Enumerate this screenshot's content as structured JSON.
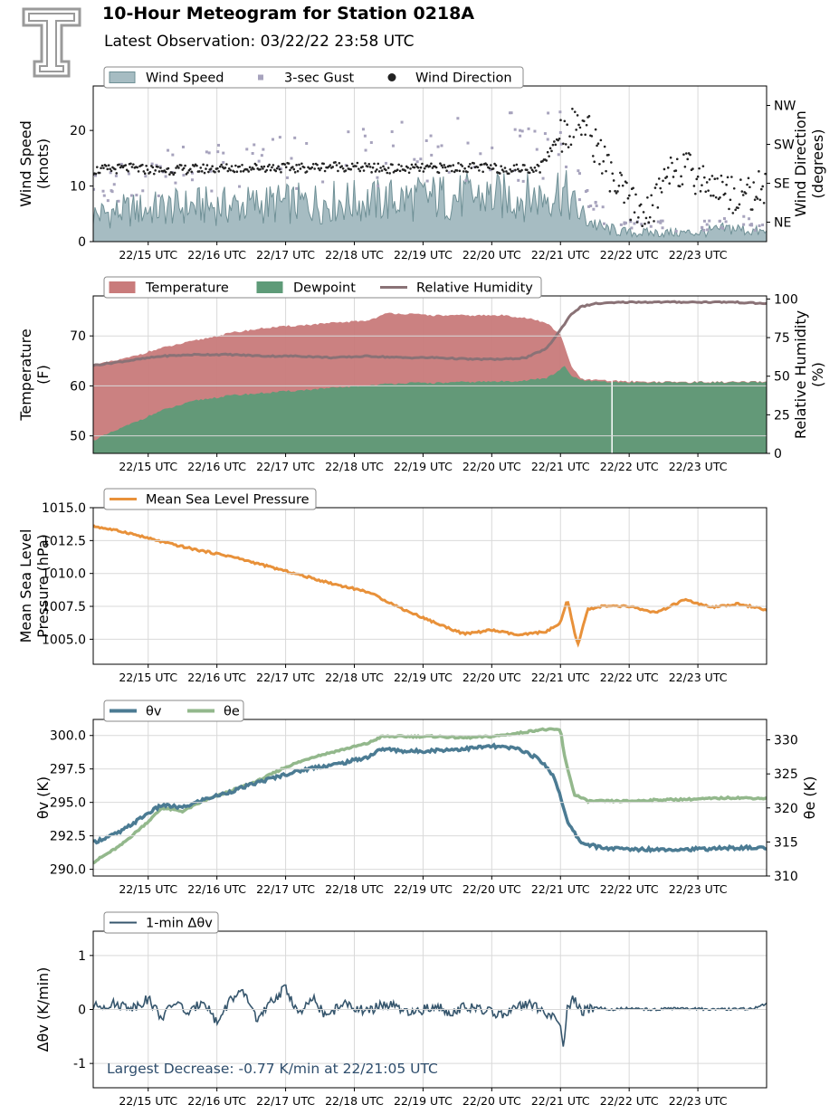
{
  "header": {
    "title": "10-Hour Meteogram for Station 0218A",
    "subtitle": "Latest Observation: 03/22/22 23:58 UTC"
  },
  "colors": {
    "wind_speed": "#a6bcc2",
    "wind_speed_line": "#6f9096",
    "gust": "#a7a3bd",
    "wind_direction": "#222222",
    "temperature": "#c97b7b",
    "dewpoint": "#5e9b78",
    "relative_humidity": "#8a7276",
    "pressure": "#e8913a",
    "theta_v": "#4b7b93",
    "theta_e": "#93b88c",
    "dtheta": "#36566d",
    "annotation": "#2e4d6c",
    "grid": "#d9d9d9"
  },
  "time_ticks": [
    "22/15 UTC",
    "22/16 UTC",
    "22/17 UTC",
    "22/18 UTC",
    "22/19 UTC",
    "22/20 UTC",
    "22/21 UTC",
    "22/22 UTC",
    "22/23 UTC"
  ],
  "chart_data": [
    {
      "type": "area",
      "id": "wind",
      "legend": [
        "Wind Speed",
        "3-sec Gust",
        "Wind Direction"
      ],
      "ylabel": "Wind Speed\n(knots)",
      "ylim": [
        0,
        28
      ],
      "yticks": [
        0,
        10,
        20
      ],
      "y2label": "Wind Direction\n(degrees)",
      "y2lim": [
        0,
        360
      ],
      "y2ticks": [
        {
          "value": 45,
          "label": "NE"
        },
        {
          "value": 135,
          "label": "SE"
        },
        {
          "value": 225,
          "label": "SW"
        },
        {
          "value": 315,
          "label": "NW"
        }
      ],
      "xlim": [
        14.2,
        24.0
      ],
      "series": [
        {
          "name": "Wind Speed",
          "x": [
            14.2,
            14.7,
            15.2,
            15.7,
            16.2,
            16.7,
            17.2,
            17.7,
            18.2,
            18.7,
            19.2,
            19.7,
            20.2,
            20.7,
            21.0,
            21.3,
            21.6,
            22.0,
            22.5,
            23.0,
            23.5,
            24.0
          ],
          "values": [
            6,
            7,
            7.5,
            8,
            8,
            8.5,
            8.5,
            9,
            9,
            9.5,
            10,
            10,
            10,
            10,
            12,
            6,
            3,
            2,
            2,
            2,
            3,
            2
          ]
        },
        {
          "name": "3-sec Gust",
          "x": [
            14.2,
            14.7,
            15.2,
            15.7,
            16.2,
            16.7,
            17.2,
            17.7,
            18.2,
            18.7,
            19.2,
            19.7,
            20.2,
            20.7,
            21.0,
            21.3,
            21.6,
            22.0,
            22.5,
            23.0,
            23.5,
            24.0
          ],
          "values": [
            10,
            12,
            13,
            14,
            14,
            15,
            15,
            16,
            16,
            17,
            18,
            18,
            18,
            17,
            19,
            10,
            5,
            3,
            3,
            3,
            4,
            3
          ]
        },
        {
          "name": "Wind Direction",
          "x": [
            14.2,
            14.7,
            15.2,
            15.7,
            16.2,
            16.7,
            17.2,
            17.7,
            18.2,
            18.7,
            19.2,
            19.7,
            20.2,
            20.7,
            21.0,
            21.3,
            21.6,
            21.8,
            22.0,
            22.3,
            22.6,
            23.0,
            23.5,
            24.0
          ],
          "values": [
            165,
            170,
            165,
            168,
            170,
            172,
            170,
            175,
            170,
            168,
            170,
            172,
            168,
            170,
            250,
            280,
            200,
            130,
            90,
            60,
            180,
            150,
            110,
            120
          ]
        }
      ]
    },
    {
      "type": "area",
      "id": "thermo",
      "legend": [
        "Temperature",
        "Dewpoint",
        "Relative Humidity"
      ],
      "ylabel": "Temperature\n(F)",
      "ylim": [
        46.5,
        78
      ],
      "yticks": [
        50,
        60,
        70
      ],
      "y2label": "Relative Humidity\n(%)",
      "y2lim": [
        0,
        102
      ],
      "y2ticks": [
        0,
        25,
        50,
        75,
        100
      ],
      "xlim": [
        14.2,
        24.0
      ],
      "series": [
        {
          "name": "Temperature",
          "x": [
            14.2,
            14.7,
            15.2,
            15.7,
            16.2,
            16.7,
            17.2,
            17.7,
            18.2,
            18.5,
            19.2,
            19.7,
            20.2,
            20.5,
            20.8,
            21.0,
            21.15,
            21.3,
            21.6,
            22.0,
            22.5,
            23.0,
            23.5,
            24.0
          ],
          "values": [
            64,
            65.5,
            67.5,
            69,
            70.5,
            71.5,
            72,
            72.5,
            73,
            74.5,
            74,
            74,
            74,
            73.5,
            72.5,
            70,
            64,
            61.2,
            61,
            60.8,
            60.7,
            60.7,
            60.7,
            60.7
          ]
        },
        {
          "name": "Dewpoint",
          "x": [
            14.2,
            14.7,
            15.2,
            15.7,
            16.2,
            16.7,
            17.2,
            17.7,
            18.2,
            18.7,
            19.2,
            19.7,
            20.2,
            20.5,
            20.8,
            21.0,
            21.05,
            21.15,
            21.3,
            21.6,
            22.0,
            22.5,
            23.0,
            23.5,
            24.0
          ],
          "values": [
            49,
            52,
            55,
            57,
            58,
            58.5,
            59,
            59.5,
            60,
            60.5,
            60.5,
            60.7,
            60.8,
            61,
            61.5,
            63,
            64,
            62,
            61,
            60.7,
            60.6,
            60.6,
            60.6,
            60.6,
            60.6
          ]
        },
        {
          "name": "Relative Humidity",
          "x": [
            14.2,
            14.7,
            15.2,
            15.7,
            16.2,
            16.7,
            17.2,
            17.7,
            18.2,
            18.7,
            19.2,
            19.7,
            20.2,
            20.5,
            20.8,
            21.0,
            21.15,
            21.3,
            21.5,
            22.0,
            22.5,
            23.0,
            23.5,
            24.0
          ],
          "values": [
            57,
            60,
            63,
            64,
            64,
            63,
            63,
            62,
            63,
            62,
            62,
            61,
            61,
            62,
            68,
            80,
            90,
            95,
            97,
            98,
            98,
            98,
            98,
            97
          ]
        }
      ]
    },
    {
      "type": "line",
      "id": "pressure",
      "legend": [
        "Mean Sea Level Pressure"
      ],
      "ylabel": "Mean Sea Level\nPressure (hPa)",
      "ylim": [
        1003.1,
        1015.0
      ],
      "yticks": [
        1005.0,
        1007.5,
        1010.0,
        1012.5,
        1015.0
      ],
      "xlim": [
        14.2,
        24.0
      ],
      "series": [
        {
          "name": "Mean Sea Level Pressure",
          "x": [
            14.2,
            14.7,
            15.2,
            15.7,
            16.2,
            16.7,
            17.2,
            17.7,
            18.2,
            18.7,
            19.2,
            19.6,
            20.0,
            20.4,
            20.8,
            21.0,
            21.1,
            21.25,
            21.4,
            21.6,
            22.0,
            22.4,
            22.8,
            23.2,
            23.6,
            24.0
          ],
          "values": [
            1013.6,
            1013.1,
            1012.4,
            1011.8,
            1011.3,
            1010.6,
            1009.9,
            1009.2,
            1008.6,
            1007.3,
            1006.2,
            1005.4,
            1005.7,
            1005.3,
            1005.6,
            1006.2,
            1008.0,
            1004.5,
            1007.3,
            1007.5,
            1007.5,
            1007.0,
            1008.0,
            1007.4,
            1007.7,
            1007.2
          ]
        }
      ]
    },
    {
      "type": "line",
      "id": "theta",
      "legend": [
        "θv",
        "θe"
      ],
      "ylabel": "θv (K)",
      "ylim": [
        289.5,
        301.2
      ],
      "yticks": [
        290.0,
        292.5,
        295.0,
        297.5,
        300.0
      ],
      "y2label": "θe (K)",
      "y2lim": [
        310,
        333
      ],
      "y2ticks": [
        310,
        315,
        320,
        325,
        330
      ],
      "xlim": [
        14.2,
        24.0
      ],
      "series": [
        {
          "name": "θv",
          "axis": "left",
          "x": [
            14.2,
            14.6,
            15.0,
            15.2,
            15.5,
            15.8,
            16.2,
            16.6,
            17.0,
            17.4,
            17.8,
            18.2,
            18.4,
            18.8,
            19.2,
            19.6,
            20.0,
            20.4,
            20.7,
            20.9,
            21.0,
            21.1,
            21.3,
            21.6,
            22.0,
            22.5,
            23.0,
            23.5,
            24.0
          ],
          "values": [
            292.0,
            292.8,
            294.2,
            294.8,
            294.6,
            295.2,
            295.8,
            296.5,
            297.1,
            297.6,
            297.9,
            298.4,
            299.0,
            298.8,
            298.9,
            299.0,
            299.2,
            299.0,
            298.2,
            297.0,
            295.5,
            293.5,
            292.0,
            291.6,
            291.5,
            291.5,
            291.5,
            291.6,
            291.6
          ]
        },
        {
          "name": "θe",
          "axis": "right",
          "x": [
            14.2,
            14.6,
            15.0,
            15.2,
            15.5,
            15.8,
            16.2,
            16.6,
            17.0,
            17.4,
            17.8,
            18.2,
            18.4,
            18.8,
            19.2,
            19.6,
            20.0,
            20.4,
            20.7,
            20.9,
            21.0,
            21.05,
            21.2,
            21.4,
            21.6,
            22.0,
            22.5,
            23.0,
            23.5,
            24.0
          ],
          "values": [
            312,
            314.5,
            318,
            320,
            319.5,
            321,
            322.5,
            324,
            326,
            327.5,
            328.5,
            329.5,
            330.5,
            330.5,
            330.5,
            330.3,
            330.5,
            331,
            331.5,
            331.5,
            331.5,
            328,
            322,
            321,
            321,
            321,
            321.2,
            321.3,
            321.5,
            321.4
          ]
        }
      ]
    },
    {
      "type": "line",
      "id": "dtheta",
      "legend": [
        "1-min Δθv"
      ],
      "ylabel": "Δθv (K/min)",
      "ylim": [
        -1.45,
        1.45
      ],
      "yticks": [
        -1,
        0,
        1
      ],
      "xlim": [
        14.2,
        24.0
      ],
      "annotation": "Largest Decrease: -0.77 K/min at 22/21:05 UTC",
      "series": [
        {
          "name": "1-min Δθv",
          "x": [
            14.2,
            14.5,
            14.8,
            15.0,
            15.2,
            15.4,
            15.6,
            15.8,
            16.0,
            16.2,
            16.4,
            16.6,
            16.8,
            17.0,
            17.2,
            17.4,
            17.6,
            17.8,
            18.0,
            18.2,
            18.4,
            18.6,
            18.8,
            19.0,
            19.2,
            19.4,
            19.6,
            19.8,
            20.0,
            20.2,
            20.4,
            20.6,
            20.8,
            20.9,
            21.0,
            21.05,
            21.1,
            21.2,
            21.3,
            21.5,
            21.7,
            22.0,
            22.3,
            22.6,
            23.0,
            23.4,
            23.8,
            24.0
          ],
          "values": [
            0.05,
            0.1,
            0.05,
            0.2,
            -0.15,
            0.15,
            -0.1,
            0.2,
            -0.25,
            0.2,
            0.3,
            -0.2,
            0.15,
            0.4,
            -0.1,
            0.2,
            -0.15,
            0.1,
            0.05,
            -0.05,
            0.1,
            0.05,
            -0.1,
            0.0,
            0.05,
            -0.05,
            0.05,
            0.0,
            -0.05,
            -0.1,
            0.05,
            0.1,
            -0.1,
            -0.15,
            -0.3,
            -0.77,
            0.05,
            0.2,
            -0.05,
            0.05,
            0.0,
            0.02,
            0.0,
            0.02,
            0.01,
            0.0,
            0.02,
            0.1
          ]
        }
      ]
    }
  ]
}
